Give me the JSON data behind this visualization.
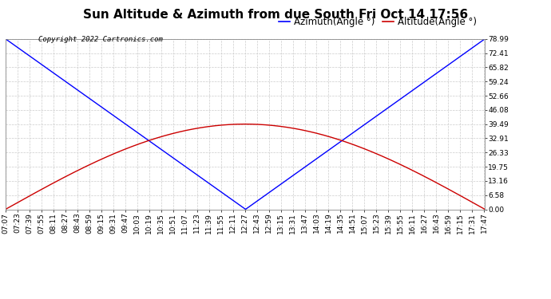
{
  "title": "Sun Altitude & Azimuth from due South Fri Oct 14 17:56",
  "copyright": "Copyright 2022 Cartronics.com",
  "legend_azimuth": "Azimuth(Angle °)",
  "legend_altitude": "Altitude(Angle °)",
  "azimuth_color": "#0000ff",
  "altitude_color": "#cc0000",
  "yticks": [
    0.0,
    6.58,
    13.16,
    19.75,
    26.33,
    32.91,
    39.49,
    46.08,
    52.66,
    59.24,
    65.82,
    72.41,
    78.99
  ],
  "ymin": 0.0,
  "ymax": 78.99,
  "background_color": "#ffffff",
  "grid_color": "#cccccc",
  "xtick_start_minutes": 427,
  "xtick_end_minutes": 1068,
  "xtick_step_minutes": 16,
  "solar_noon_minutes": 748,
  "azimuth_max": 78.99,
  "altitude_max": 39.49,
  "title_fontsize": 11,
  "copyright_fontsize": 6.5,
  "tick_fontsize": 6.5,
  "legend_fontsize": 8.5
}
